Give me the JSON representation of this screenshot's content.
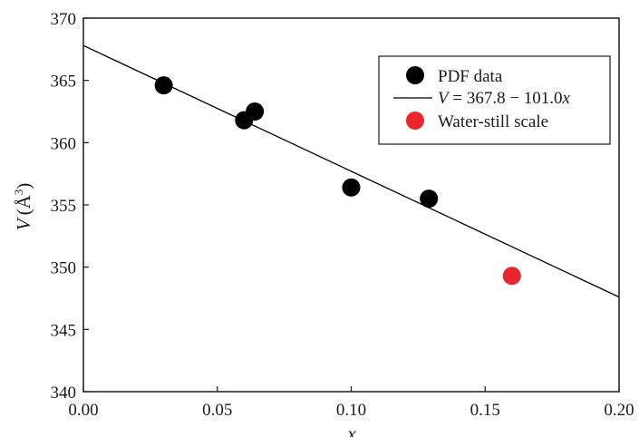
{
  "chart_data": {
    "type": "scatter",
    "xlabel": "x",
    "ylabel": "V (Å³)",
    "ylabel_base": "V",
    "ylabel_unit": "(Å",
    "ylabel_sup": "3",
    "ylabel_close": ")",
    "xlim": [
      0.0,
      0.2
    ],
    "ylim": [
      340,
      370
    ],
    "xticks": [
      0.0,
      0.05,
      0.1,
      0.15,
      0.2
    ],
    "xtick_labels": [
      "0.00",
      "0.05",
      "0.10",
      "0.15",
      "0.20"
    ],
    "yticks": [
      340,
      345,
      350,
      355,
      360,
      365,
      370
    ],
    "ytick_labels": [
      "340",
      "345",
      "350",
      "355",
      "360",
      "365",
      "370"
    ],
    "grid": false,
    "legend_position": "top-right",
    "series": [
      {
        "name": "PDF data",
        "kind": "points",
        "color": "#000000",
        "points": [
          {
            "x": 0.03,
            "y": 364.6
          },
          {
            "x": 0.06,
            "y": 361.8
          },
          {
            "x": 0.064,
            "y": 362.5
          },
          {
            "x": 0.1,
            "y": 356.4
          },
          {
            "x": 0.129,
            "y": 355.5
          }
        ]
      },
      {
        "name": "V = 367.8 − 101.0x",
        "kind": "fit-line",
        "color": "#000000",
        "intercept": 367.8,
        "slope": -101.0
      },
      {
        "name": "Water-still scale",
        "kind": "points",
        "color": "#e8262b",
        "points": [
          {
            "x": 0.16,
            "y": 349.3
          }
        ]
      }
    ],
    "legend": {
      "entry1": "PDF data",
      "entry2_v": "V",
      "entry2_mid": " = 367.8 − 101.0",
      "entry2_x": "x",
      "entry3": "Water-still scale"
    }
  }
}
